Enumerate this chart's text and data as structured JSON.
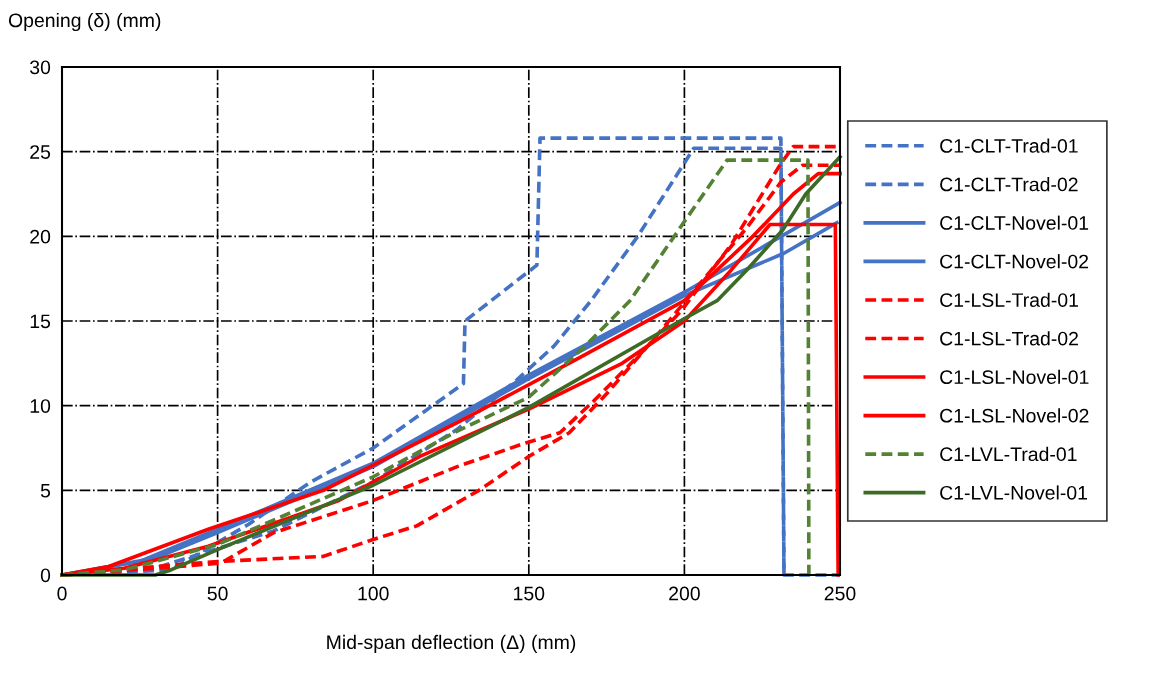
{
  "chart_data": {
    "type": "line",
    "xlabel": "Mid-span deflection (Δ) (mm)",
    "ylabel": "Opening (δ) (mm)",
    "xlim": [
      0,
      250
    ],
    "ylim": [
      0,
      30
    ],
    "xticks": [
      0,
      50,
      100,
      150,
      200,
      250
    ],
    "yticks": [
      0,
      5,
      10,
      15,
      20,
      25,
      30
    ],
    "grid": true,
    "legend": "right",
    "marker": "none",
    "series": [
      {
        "name": "C1-CLT-Trad-01",
        "color": "#4472c4",
        "line_style": "dashed",
        "x": [
          0,
          35,
          60,
          80,
          100,
          129,
          129.5,
          140,
          152.6,
          153.6,
          231,
          232,
          250
        ],
        "values": [
          0,
          0.3,
          3,
          5.5,
          7.5,
          11.3,
          15,
          16.5,
          18.3,
          25.8,
          25.8,
          0,
          0
        ]
      },
      {
        "name": "C1-CLT-Trad-02",
        "color": "#4472c4",
        "line_style": "dashed",
        "x": [
          0,
          28,
          68,
          100,
          127,
          146,
          158,
          170,
          185,
          203,
          231,
          232
        ],
        "values": [
          0,
          0.3,
          2.6,
          5.5,
          8.6,
          11.5,
          13.5,
          16.2,
          20,
          25.2,
          25.2,
          0
        ]
      },
      {
        "name": "C1-CLT-Novel-01",
        "color": "#4472c4",
        "line_style": "solid",
        "x": [
          0,
          25,
          50,
          100,
          150,
          200,
          250
        ],
        "values": [
          0,
          0.8,
          2.7,
          6.6,
          11.8,
          16.7,
          22.0
        ]
      },
      {
        "name": "C1-CLT-Novel-02",
        "color": "#4472c4",
        "line_style": "solid",
        "x": [
          0,
          30,
          50,
          100,
          150,
          200,
          232,
          249
        ],
        "values": [
          0,
          1,
          2.5,
          6.4,
          11.6,
          16.5,
          19.0,
          20.8
        ]
      },
      {
        "name": "C1-LSL-Trad-01",
        "color": "#ff0000",
        "line_style": "dashed",
        "x": [
          0,
          30,
          51,
          68,
          100,
          127,
          149,
          160,
          171,
          185,
          199,
          215,
          231,
          235,
          250
        ],
        "values": [
          0,
          0.4,
          0.7,
          2.5,
          4.4,
          6.4,
          7.8,
          8.4,
          10.3,
          12.9,
          15.6,
          19.5,
          24.3,
          25.3,
          25.3
        ]
      },
      {
        "name": "C1-LSL-Trad-02",
        "color": "#ff0000",
        "line_style": "dashed",
        "x": [
          0,
          30,
          50,
          84,
          100,
          114,
          134,
          150,
          163,
          175,
          190,
          205,
          220,
          231,
          238,
          250
        ],
        "values": [
          0,
          0.5,
          0.8,
          1.1,
          2.1,
          2.9,
          5.0,
          7.0,
          8.4,
          10.7,
          13.9,
          17.2,
          20.5,
          23.2,
          24.2,
          24.2
        ]
      },
      {
        "name": "C1-LSL-Novel-01",
        "color": "#ff0000",
        "line_style": "solid",
        "x": [
          0,
          15,
          47,
          84,
          127,
          165,
          200,
          222,
          235,
          243,
          250
        ],
        "values": [
          0,
          0.5,
          2.7,
          5.0,
          9.0,
          12.7,
          16.2,
          20.0,
          22.5,
          23.7,
          23.7
        ]
      },
      {
        "name": "C1-LSL-Novel-02",
        "color": "#ff0000",
        "line_style": "solid",
        "x": [
          0,
          20,
          47,
          89,
          115,
          150,
          180,
          200,
          215,
          227.5,
          248.5,
          249.4
        ],
        "values": [
          0,
          0.4,
          1.7,
          4.4,
          7.0,
          9.8,
          12.5,
          15.0,
          18.0,
          20.7,
          20.7,
          0
        ]
      },
      {
        "name": "C1-LVL-Trad-01",
        "color": "#548235",
        "line_style": "dashed",
        "x": [
          0,
          20,
          50,
          100,
          127,
          150,
          168,
          182.5,
          198.6,
          213.7,
          239.7,
          240
        ],
        "values": [
          0,
          0.3,
          1.8,
          5.8,
          8.5,
          10.5,
          13.5,
          16.2,
          20.5,
          24.5,
          24.5,
          0
        ]
      },
      {
        "name": "C1-LVL-Novel-01",
        "color": "#3d6b26",
        "line_style": "solid",
        "x": [
          0,
          30,
          35,
          50,
          100,
          150,
          199.6,
          210.5,
          220,
          231.7,
          239,
          250
        ],
        "values": [
          0,
          0,
          0.3,
          1.5,
          5.3,
          9.9,
          15.1,
          16.2,
          18.0,
          20.4,
          22.5,
          24.7
        ]
      }
    ]
  }
}
